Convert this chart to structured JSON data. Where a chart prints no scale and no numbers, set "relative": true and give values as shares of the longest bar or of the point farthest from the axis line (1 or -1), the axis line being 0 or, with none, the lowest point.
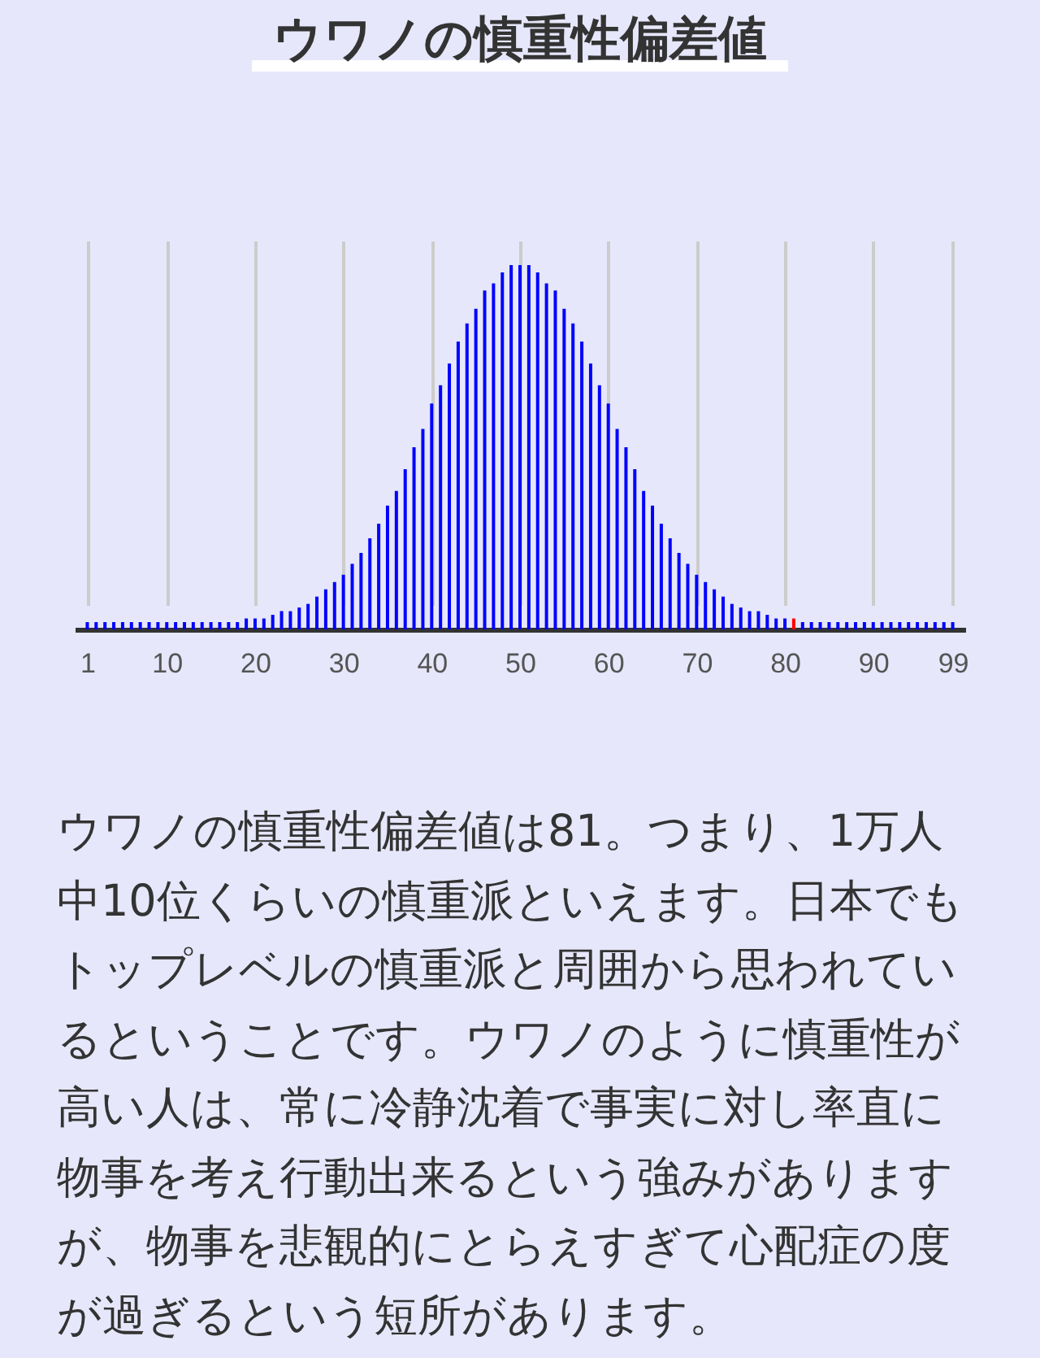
{
  "chart_data": {
    "type": "bar",
    "title": "ウワノの慎重性偏差値",
    "relative": true,
    "x": [
      1,
      2,
      3,
      4,
      5,
      6,
      7,
      8,
      9,
      10,
      11,
      12,
      13,
      14,
      15,
      16,
      17,
      18,
      19,
      20,
      21,
      22,
      23,
      24,
      25,
      26,
      27,
      28,
      29,
      30,
      31,
      32,
      33,
      34,
      35,
      36,
      37,
      38,
      39,
      40,
      41,
      42,
      43,
      44,
      45,
      46,
      47,
      48,
      49,
      50,
      51,
      52,
      53,
      54,
      55,
      56,
      57,
      58,
      59,
      60,
      61,
      62,
      63,
      64,
      65,
      66,
      67,
      68,
      69,
      70,
      71,
      72,
      73,
      74,
      75,
      76,
      77,
      78,
      79,
      80,
      81,
      82,
      83,
      84,
      85,
      86,
      87,
      88,
      89,
      90,
      91,
      92,
      93,
      94,
      95,
      96,
      97,
      98,
      99
    ],
    "values": [
      0.02,
      0.02,
      0.02,
      0.02,
      0.02,
      0.02,
      0.02,
      0.02,
      0.02,
      0.02,
      0.02,
      0.02,
      0.02,
      0.02,
      0.02,
      0.02,
      0.02,
      0.02,
      0.03,
      0.03,
      0.03,
      0.04,
      0.05,
      0.05,
      0.06,
      0.07,
      0.09,
      0.11,
      0.13,
      0.15,
      0.18,
      0.21,
      0.25,
      0.29,
      0.34,
      0.38,
      0.44,
      0.5,
      0.55,
      0.62,
      0.67,
      0.73,
      0.79,
      0.84,
      0.88,
      0.93,
      0.95,
      0.98,
      1,
      1,
      1,
      0.98,
      0.95,
      0.93,
      0.88,
      0.84,
      0.79,
      0.73,
      0.67,
      0.62,
      0.55,
      0.5,
      0.44,
      0.38,
      0.34,
      0.29,
      0.25,
      0.21,
      0.18,
      0.15,
      0.13,
      0.11,
      0.09,
      0.07,
      0.06,
      0.05,
      0.05,
      0.04,
      0.03,
      0.03,
      0.03,
      0.02,
      0.02,
      0.02,
      0.02,
      0.02,
      0.02,
      0.02,
      0.02,
      0.02,
      0.02,
      0.02,
      0.02,
      0.02,
      0.02,
      0.02,
      0.02,
      0.02,
      0.02
    ],
    "colors": [
      "#0000ff",
      "#0000ff",
      "#0000ff",
      "#0000ff",
      "#0000ff",
      "#0000ff",
      "#0000ff",
      "#0000ff",
      "#0000ff",
      "#0000ff",
      "#0000ff",
      "#0000ff",
      "#0000ff",
      "#0000ff",
      "#0000ff",
      "#0000ff",
      "#0000ff",
      "#0000ff",
      "#0000ff",
      "#0000ff",
      "#0000ff",
      "#0000ff",
      "#0000ff",
      "#0000ff",
      "#0000ff",
      "#0000ff",
      "#0000ff",
      "#0000ff",
      "#0000ff",
      "#0000ff",
      "#0000ff",
      "#0000ff",
      "#0000ff",
      "#0000ff",
      "#0000ff",
      "#0000ff",
      "#0000ff",
      "#0000ff",
      "#0000ff",
      "#0000ff",
      "#0000ff",
      "#0000ff",
      "#0000ff",
      "#0000ff",
      "#0000ff",
      "#0000ff",
      "#0000ff",
      "#0000ff",
      "#0000ff",
      "#0000ff",
      "#0000ff",
      "#0000ff",
      "#0000ff",
      "#0000ff",
      "#0000ff",
      "#0000ff",
      "#0000ff",
      "#0000ff",
      "#0000ff",
      "#0000ff",
      "#0000ff",
      "#0000ff",
      "#0000ff",
      "#0000ff",
      "#0000ff",
      "#0000ff",
      "#0000ff",
      "#0000ff",
      "#0000ff",
      "#0000ff",
      "#0000ff",
      "#0000ff",
      "#0000ff",
      "#0000ff",
      "#0000ff",
      "#0000ff",
      "#0000ff",
      "#0000ff",
      "#0000ff",
      "#0000ff",
      "#ff0000",
      "#0000ff",
      "#0000ff",
      "#0000ff",
      "#0000ff",
      "#0000ff",
      "#0000ff",
      "#0000ff",
      "#0000ff",
      "#0000ff",
      "#0000ff",
      "#0000ff",
      "#0000ff",
      "#0000ff",
      "#0000ff",
      "#0000ff",
      "#0000ff",
      "#0000ff",
      "#0000ff"
    ],
    "xlim": [
      0.5,
      99.5
    ],
    "xticks": [
      1,
      10,
      20,
      30,
      40,
      50,
      60,
      70,
      80,
      90,
      99
    ],
    "grid": "x",
    "annotations": [
      "ウワノの慎重性偏差値は81。つまり、1万人中10位くらいの慎重派といえます。日本でもトップレベルの慎重派と周囲から思われているということです。ウワノのように慎重性が高い人は、常に冷静沈着で事実に対し率直に物事を考え行動出来るという強みがありますが、物事を悲観的にとらえすぎて心配症の度が過ぎるという短所があります。"
    ]
  }
}
